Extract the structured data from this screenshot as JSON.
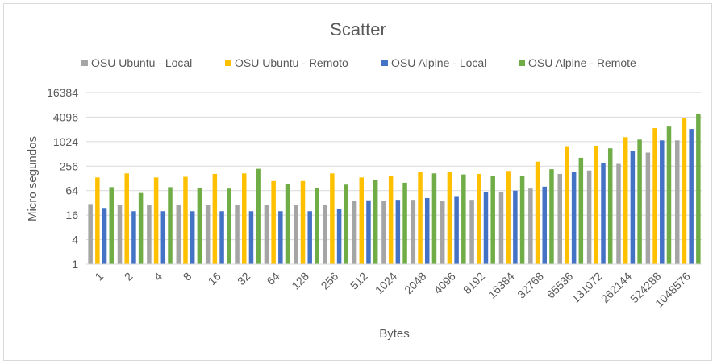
{
  "chart_data": {
    "type": "bar",
    "title": "Scatter",
    "xlabel": "Bytes",
    "ylabel": "Micro segundos",
    "y_scale": "log2",
    "ylim": [
      1,
      16384
    ],
    "y_ticks": [
      "1",
      "4",
      "16",
      "64",
      "256",
      "1024",
      "4096",
      "16384"
    ],
    "y_tick_values": [
      1,
      4,
      16,
      64,
      256,
      1024,
      4096,
      16384
    ],
    "grid": true,
    "legend_position": "top",
    "categories": [
      "1",
      "2",
      "4",
      "8",
      "16",
      "32",
      "64",
      "128",
      "256",
      "512",
      "1024",
      "2048",
      "4096",
      "8192",
      "16384",
      "32768",
      "65536",
      "131072",
      "262144",
      "524288",
      "1048576"
    ],
    "series": [
      {
        "name": "OSU Ubuntu - Local",
        "color": "#a5a5a5",
        "values": [
          30,
          29,
          28,
          29,
          29,
          28,
          29,
          29,
          29,
          35,
          35,
          38,
          35,
          38,
          60,
          72,
          165,
          200,
          290,
          550,
          1100
        ]
      },
      {
        "name": "OSU Ubuntu - Remoto",
        "color": "#ffc000",
        "values": [
          135,
          170,
          135,
          140,
          165,
          170,
          110,
          110,
          170,
          135,
          145,
          185,
          180,
          165,
          195,
          330,
          790,
          810,
          1320,
          2200,
          3800
        ]
      },
      {
        "name": "OSU Alpine - Local",
        "color": "#4472c4",
        "values": [
          24,
          20,
          20,
          20,
          20,
          20,
          20,
          20,
          23,
          37,
          38,
          42,
          45,
          60,
          64,
          80,
          180,
          300,
          600,
          1100,
          2100
        ]
      },
      {
        "name": "OSU Alpine - Remote",
        "color": "#70ad47",
        "values": [
          78,
          56,
          78,
          74,
          72,
          220,
          95,
          74,
          90,
          115,
          100,
          170,
          160,
          150,
          150,
          215,
          410,
          700,
          1150,
          2400,
          5000
        ]
      }
    ]
  }
}
